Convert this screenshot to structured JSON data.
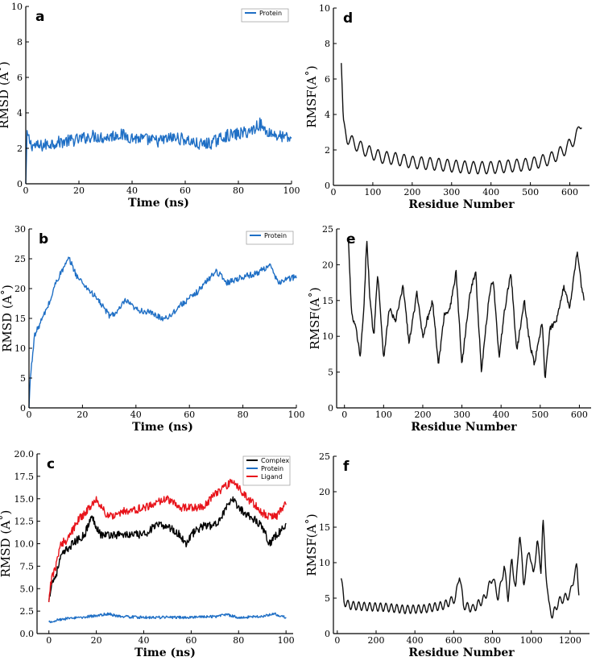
{
  "chart_data": [
    {
      "id": "a",
      "type": "line",
      "panel_label": "a",
      "xlabel": "Time (ns)",
      "ylabel": "RMSD (A˚)",
      "xlim": [
        0,
        100
      ],
      "ylim": [
        0,
        10
      ],
      "xticks": [
        0,
        20,
        40,
        60,
        80,
        100
      ],
      "yticks": [
        0,
        2,
        4,
        6,
        8,
        10
      ],
      "legend": true,
      "legend_position": "top-right",
      "series": [
        {
          "name": "Protein",
          "color": "#1f6fc5",
          "noise": 0.35,
          "points": [
            [
              0,
              0
            ],
            [
              0.5,
              2.8
            ],
            [
              2,
              2.2
            ],
            [
              5,
              2.1
            ],
            [
              10,
              2.3
            ],
            [
              15,
              2.4
            ],
            [
              20,
              2.5
            ],
            [
              25,
              2.7
            ],
            [
              30,
              2.6
            ],
            [
              35,
              2.8
            ],
            [
              40,
              2.6
            ],
            [
              45,
              2.5
            ],
            [
              50,
              2.4
            ],
            [
              55,
              2.6
            ],
            [
              60,
              2.5
            ],
            [
              65,
              2.2
            ],
            [
              70,
              2.3
            ],
            [
              75,
              2.7
            ],
            [
              80,
              2.8
            ],
            [
              85,
              3.0
            ],
            [
              88,
              3.4
            ],
            [
              90,
              3.0
            ],
            [
              95,
              2.7
            ],
            [
              100,
              2.5
            ]
          ]
        }
      ]
    },
    {
      "id": "d",
      "type": "line",
      "panel_label": "d",
      "xlabel": "Residue Number",
      "ylabel": "RMSF(A˚)",
      "xlim": [
        0,
        650
      ],
      "ylim": [
        0,
        10
      ],
      "xticks": [
        0,
        100,
        200,
        300,
        400,
        500,
        600
      ],
      "yticks": [
        0,
        2,
        4,
        6,
        8,
        10
      ],
      "legend": false,
      "series": [
        {
          "name": "RMSF",
          "color": "#111111",
          "noise": 0.0,
          "wave_amp": 0.35,
          "wave_period": 22,
          "points": [
            [
              20,
              6.9
            ],
            [
              25,
              3.4
            ],
            [
              35,
              2.7
            ],
            [
              50,
              2.4
            ],
            [
              80,
              2.0
            ],
            [
              120,
              1.6
            ],
            [
              160,
              1.5
            ],
            [
              200,
              1.3
            ],
            [
              260,
              1.2
            ],
            [
              300,
              1.1
            ],
            [
              350,
              1.0
            ],
            [
              400,
              1.0
            ],
            [
              450,
              1.1
            ],
            [
              500,
              1.2
            ],
            [
              550,
              1.5
            ],
            [
              580,
              1.9
            ],
            [
              600,
              2.3
            ],
            [
              620,
              2.9
            ],
            [
              630,
              3.6
            ]
          ]
        }
      ]
    },
    {
      "id": "b",
      "type": "line",
      "panel_label": "b",
      "xlabel": "Time (ns)",
      "ylabel": "RMSD (A˚)",
      "xlim": [
        0,
        100
      ],
      "ylim": [
        0,
        30
      ],
      "xticks": [
        0,
        20,
        40,
        60,
        80,
        100
      ],
      "yticks": [
        0,
        5,
        10,
        15,
        20,
        25,
        30
      ],
      "legend": true,
      "legend_position": "top-right",
      "series": [
        {
          "name": "Protein",
          "color": "#1f6fc5",
          "noise": 0.5,
          "points": [
            [
              0,
              0
            ],
            [
              0.5,
              5
            ],
            [
              2,
              12
            ],
            [
              4,
              14
            ],
            [
              8,
              18
            ],
            [
              10,
              21
            ],
            [
              13,
              23.5
            ],
            [
              15,
              25
            ],
            [
              18,
              22
            ],
            [
              22,
              20
            ],
            [
              26,
              18
            ],
            [
              30,
              15.5
            ],
            [
              33,
              16
            ],
            [
              36,
              18
            ],
            [
              40,
              16.5
            ],
            [
              45,
              16
            ],
            [
              50,
              15
            ],
            [
              53,
              15.5
            ],
            [
              56,
              17
            ],
            [
              62,
              19
            ],
            [
              66,
              21
            ],
            [
              70,
              23
            ],
            [
              74,
              21
            ],
            [
              80,
              22
            ],
            [
              85,
              22.5
            ],
            [
              90,
              24
            ],
            [
              93,
              21
            ],
            [
              96,
              21.5
            ],
            [
              100,
              22
            ]
          ]
        }
      ]
    },
    {
      "id": "e",
      "type": "line",
      "panel_label": "e",
      "xlabel": "Residue Number",
      "ylabel": "RMSF(A˚)",
      "xlim": [
        -20,
        630
      ],
      "ylim": [
        0,
        25
      ],
      "xticks": [
        0,
        100,
        200,
        300,
        400,
        500,
        600
      ],
      "yticks": [
        0,
        5,
        10,
        15,
        20,
        25
      ],
      "legend": false,
      "series": [
        {
          "name": "RMSF",
          "color": "#111111",
          "noise": 0.4,
          "points": [
            [
              10,
              23.5
            ],
            [
              18,
              13
            ],
            [
              30,
              11
            ],
            [
              40,
              7
            ],
            [
              50,
              14
            ],
            [
              57,
              24
            ],
            [
              65,
              15
            ],
            [
              75,
              10
            ],
            [
              85,
              19
            ],
            [
              100,
              7
            ],
            [
              115,
              14
            ],
            [
              130,
              12
            ],
            [
              150,
              17
            ],
            [
              165,
              9
            ],
            [
              185,
              16
            ],
            [
              200,
              10
            ],
            [
              225,
              15
            ],
            [
              240,
              6
            ],
            [
              255,
              13
            ],
            [
              270,
              14
            ],
            [
              285,
              19
            ],
            [
              300,
              6
            ],
            [
              320,
              16
            ],
            [
              335,
              19
            ],
            [
              350,
              5
            ],
            [
              370,
              16
            ],
            [
              380,
              18
            ],
            [
              395,
              7
            ],
            [
              410,
              14
            ],
            [
              425,
              19
            ],
            [
              440,
              8
            ],
            [
              460,
              15
            ],
            [
              470,
              10
            ],
            [
              485,
              6
            ],
            [
              495,
              9
            ],
            [
              505,
              12
            ],
            [
              512,
              4
            ],
            [
              525,
              11
            ],
            [
              540,
              12
            ],
            [
              560,
              17
            ],
            [
              575,
              14
            ],
            [
              585,
              18
            ],
            [
              595,
              22
            ],
            [
              605,
              17
            ],
            [
              612,
              15
            ]
          ]
        }
      ]
    },
    {
      "id": "c",
      "type": "line",
      "panel_label": "c",
      "xlabel": "Time (ns)",
      "ylabel": "RMSD (A˚)",
      "xlim": [
        -5,
        103
      ],
      "ylim": [
        0,
        20
      ],
      "xticks": [
        0,
        20,
        40,
        60,
        80,
        100
      ],
      "yticks": [
        0.0,
        2.5,
        5.0,
        7.5,
        10.0,
        12.5,
        15.0,
        17.5,
        20.0
      ],
      "ytick_labels": [
        "0.0",
        "2.5",
        "5.0",
        "7.5",
        "10.0",
        "12.5",
        "15.0",
        "17.5",
        "20.0"
      ],
      "legend": true,
      "legend_position": "top-right",
      "series": [
        {
          "name": "Complex",
          "color": "#000000",
          "noise": 0.45,
          "points": [
            [
              0,
              3.5
            ],
            [
              1,
              5.5
            ],
            [
              3,
              6.5
            ],
            [
              5,
              8.5
            ],
            [
              8,
              9.5
            ],
            [
              10,
              10
            ],
            [
              15,
              11
            ],
            [
              18,
              13
            ],
            [
              22,
              11
            ],
            [
              30,
              11
            ],
            [
              40,
              11
            ],
            [
              45,
              12
            ],
            [
              50,
              12
            ],
            [
              55,
              11
            ],
            [
              58,
              10
            ],
            [
              60,
              11
            ],
            [
              65,
              12
            ],
            [
              70,
              12
            ],
            [
              75,
              14
            ],
            [
              78,
              15
            ],
            [
              80,
              14
            ],
            [
              85,
              13
            ],
            [
              90,
              12
            ],
            [
              93,
              10
            ],
            [
              96,
              11
            ],
            [
              100,
              12
            ]
          ]
        },
        {
          "name": "Protein",
          "color": "#1f6fc5",
          "noise": 0.15,
          "points": [
            [
              0,
              1.3
            ],
            [
              5,
              1.6
            ],
            [
              10,
              1.7
            ],
            [
              20,
              2.0
            ],
            [
              25,
              2.2
            ],
            [
              30,
              1.9
            ],
            [
              40,
              1.8
            ],
            [
              50,
              1.8
            ],
            [
              60,
              1.8
            ],
            [
              70,
              1.9
            ],
            [
              75,
              2.1
            ],
            [
              80,
              1.8
            ],
            [
              90,
              1.9
            ],
            [
              95,
              2.2
            ],
            [
              100,
              1.8
            ]
          ]
        },
        {
          "name": "Ligand",
          "color": "#e8141b",
          "noise": 0.45,
          "points": [
            [
              0,
              3.5
            ],
            [
              1,
              6
            ],
            [
              3,
              7.5
            ],
            [
              5,
              10
            ],
            [
              8,
              10.5
            ],
            [
              12,
              12.5
            ],
            [
              17,
              14
            ],
            [
              20,
              15
            ],
            [
              25,
              13
            ],
            [
              30,
              13.5
            ],
            [
              40,
              14
            ],
            [
              45,
              14.5
            ],
            [
              50,
              15
            ],
            [
              55,
              14
            ],
            [
              60,
              14
            ],
            [
              65,
              14
            ],
            [
              70,
              15.5
            ],
            [
              75,
              16.5
            ],
            [
              78,
              17
            ],
            [
              82,
              15.5
            ],
            [
              88,
              14
            ],
            [
              92,
              13
            ],
            [
              96,
              13
            ],
            [
              100,
              14.5
            ]
          ]
        }
      ]
    },
    {
      "id": "f",
      "type": "line",
      "panel_label": "f",
      "xlabel": "Residue Number",
      "ylabel": "RMSF(A˚)",
      "xlim": [
        -20,
        1300
      ],
      "ylim": [
        0,
        25
      ],
      "xticks": [
        0,
        200,
        400,
        600,
        800,
        1000,
        1200
      ],
      "yticks": [
        0,
        5,
        10,
        15,
        20,
        25
      ],
      "legend": false,
      "series": [
        {
          "name": "RMSF",
          "color": "#111111",
          "noise": 0.0,
          "wave_amp": 0.6,
          "wave_period": 28,
          "points": [
            [
              20,
              7.8
            ],
            [
              35,
              4.5
            ],
            [
              60,
              4.0
            ],
            [
              150,
              3.8
            ],
            [
              250,
              3.7
            ],
            [
              350,
              3.4
            ],
            [
              450,
              3.5
            ],
            [
              550,
              4.0
            ],
            [
              610,
              5.0
            ],
            [
              630,
              8.5
            ],
            [
              650,
              4.0
            ],
            [
              700,
              3.5
            ],
            [
              760,
              5.0
            ],
            [
              800,
              8.0
            ],
            [
              830,
              5.0
            ],
            [
              860,
              9.5
            ],
            [
              880,
              5.0
            ],
            [
              900,
              10.5
            ],
            [
              920,
              6.0
            ],
            [
              940,
              14.5
            ],
            [
              960,
              7.0
            ],
            [
              990,
              12.0
            ],
            [
              1010,
              8.0
            ],
            [
              1030,
              13.0
            ],
            [
              1050,
              9.0
            ],
            [
              1060,
              16.0
            ],
            [
              1075,
              9.0
            ],
            [
              1090,
              4.0
            ],
            [
              1110,
              2.5
            ],
            [
              1140,
              4.5
            ],
            [
              1170,
              5.0
            ],
            [
              1200,
              5.5
            ],
            [
              1220,
              8.0
            ],
            [
              1235,
              9.5
            ],
            [
              1245,
              6.0
            ]
          ]
        }
      ]
    }
  ]
}
